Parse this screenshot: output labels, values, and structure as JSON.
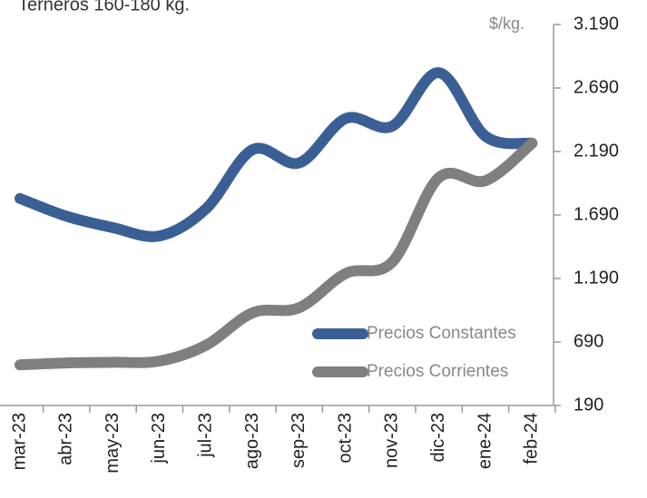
{
  "chart_data": {
    "type": "line",
    "title": "Terneros 160-180 kg.",
    "y_label": "$/kg.",
    "categories": [
      "mar-23",
      "abr-23",
      "may-23",
      "jun-23",
      "jul-23",
      "ago-23",
      "sep-23",
      "oct-23",
      "nov-23",
      "dic-23",
      "ene-24",
      "feb-24"
    ],
    "series": [
      {
        "name": "Precios Constantes",
        "color": "#3a5f95",
        "values": [
          1820,
          1680,
          1590,
          1525,
          1740,
          2205,
          2100,
          2450,
          2390,
          2810,
          2310,
          2255
        ]
      },
      {
        "name": "Precios Corrientes",
        "color": "#7f7f7f",
        "values": [
          510,
          525,
          530,
          540,
          665,
          920,
          960,
          1230,
          1320,
          1985,
          1960,
          2255
        ]
      }
    ],
    "ylim": [
      190,
      3190
    ],
    "yticks": [
      190,
      690,
      {
        "value": 1190,
        "label": "1.190"
      },
      {
        "value": 1690,
        "label": "1.690"
      },
      {
        "value": 2190,
        "label": "2.190"
      },
      {
        "value": 2690,
        "label": "2.690"
      },
      {
        "value": 3190,
        "label": "3.190"
      }
    ],
    "legend": "lower right"
  }
}
